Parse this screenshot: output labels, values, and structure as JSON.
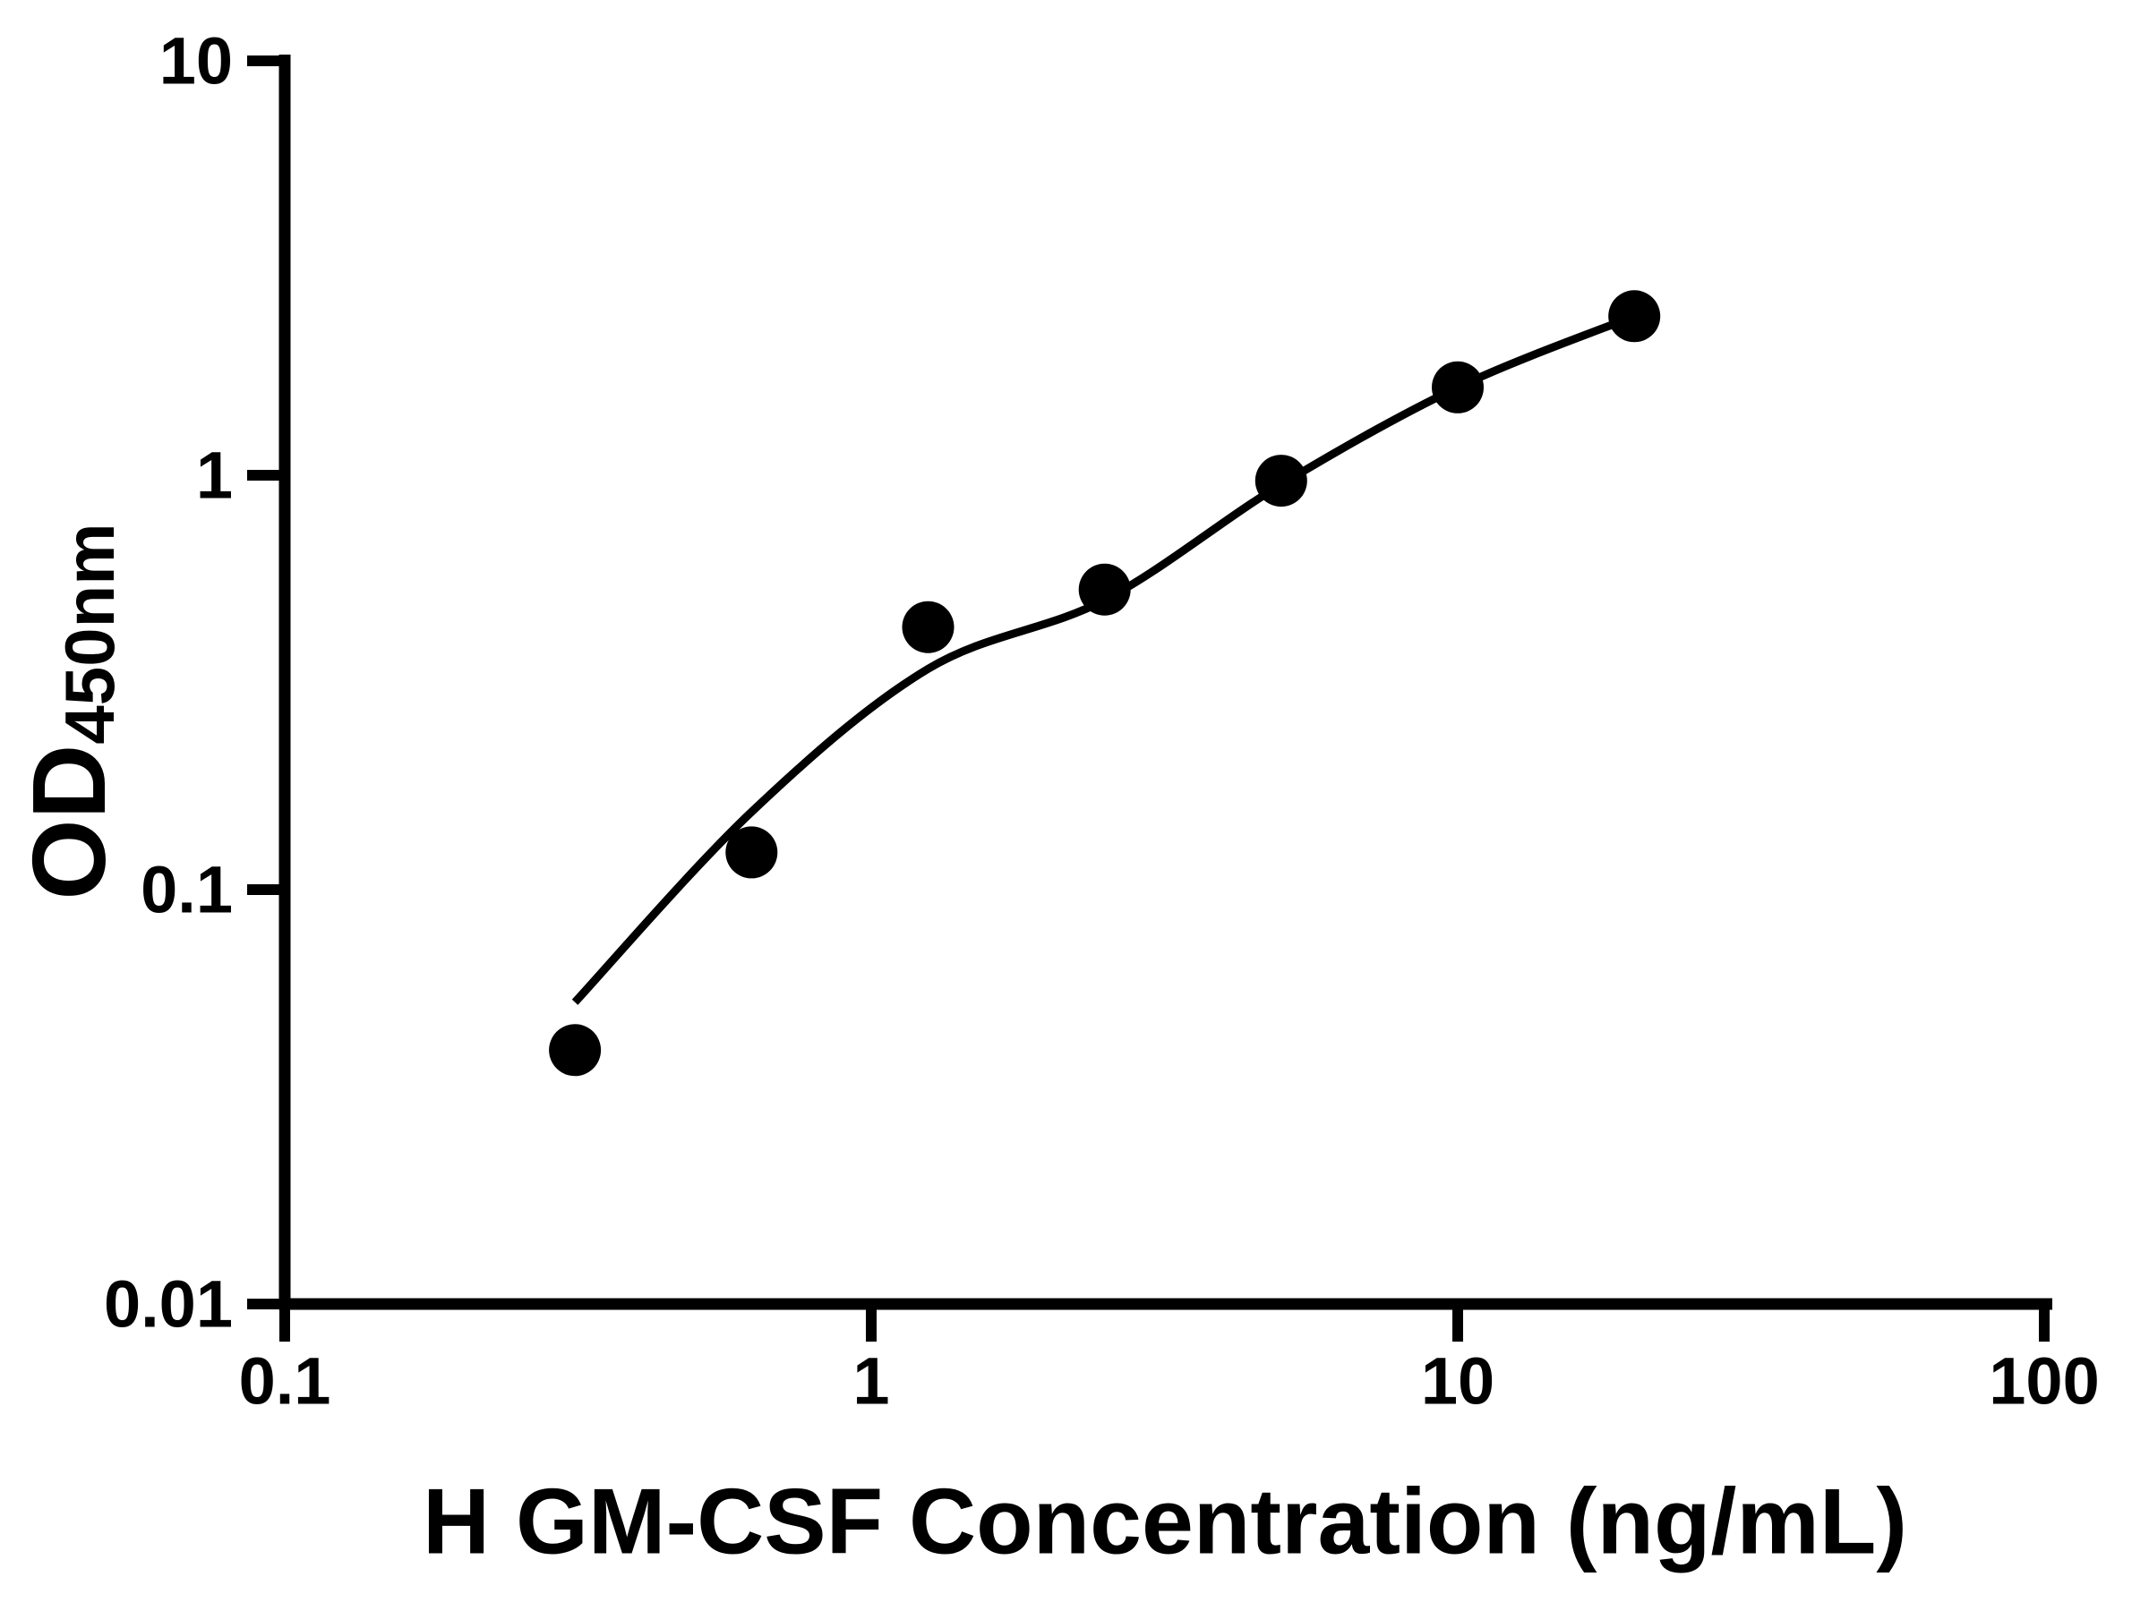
{
  "figure": {
    "kind": "elisa-standard-curve",
    "background": "#ffffff",
    "ink": "#000000"
  },
  "chart_data": {
    "type": "scatter",
    "title": "",
    "xlabel": "H GM-CSF Concentration (ng/mL)",
    "ylabel_main": "OD",
    "ylabel_sub": "450nm",
    "x_scale": "log",
    "y_scale": "log",
    "xlim": [
      0.1,
      100
    ],
    "ylim": [
      0.01,
      10
    ],
    "grid": false,
    "legend_position": "none",
    "x_ticks": [
      {
        "value": 0.1,
        "label": "0.1"
      },
      {
        "value": 1,
        "label": "1"
      },
      {
        "value": 10,
        "label": "10"
      },
      {
        "value": 100,
        "label": "100"
      }
    ],
    "y_ticks": [
      {
        "value": 10,
        "label": "10"
      },
      {
        "value": 1,
        "label": "1"
      },
      {
        "value": 0.1,
        "label": "0.1"
      },
      {
        "value": 0.01,
        "label": "0.01"
      }
    ],
    "series": [
      {
        "name": "standard-samples",
        "type": "scatter",
        "marker": "circle",
        "color": "#000000",
        "points": [
          [
            0.3125,
            0.041
          ],
          [
            0.625,
            0.123
          ],
          [
            1.25,
            0.43
          ],
          [
            2.5,
            0.53
          ],
          [
            5,
            0.97
          ],
          [
            10,
            1.63
          ],
          [
            20,
            2.42
          ]
        ]
      },
      {
        "name": "fitted-curve",
        "type": "line",
        "color": "#000000",
        "points": [
          [
            0.3125,
            0.0535
          ],
          [
            0.625,
            0.154
          ],
          [
            1.25,
            0.341
          ],
          [
            2.5,
            0.5
          ],
          [
            5,
            0.95
          ],
          [
            10,
            1.63
          ],
          [
            20,
            2.42
          ]
        ]
      }
    ]
  }
}
